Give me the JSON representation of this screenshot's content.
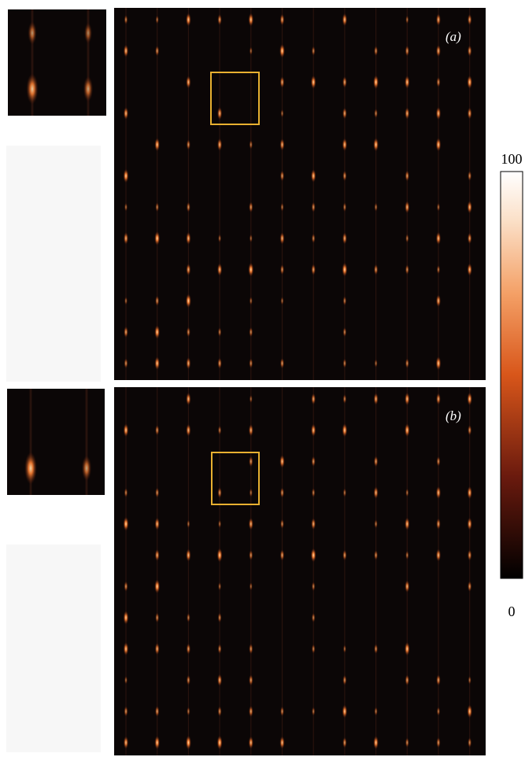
{
  "panels": [
    {
      "label": "(a)"
    },
    {
      "label": "(b)"
    }
  ],
  "colorbar": {
    "lim": [
      0,
      100
    ],
    "ticks": [
      0,
      100
    ]
  }
}
